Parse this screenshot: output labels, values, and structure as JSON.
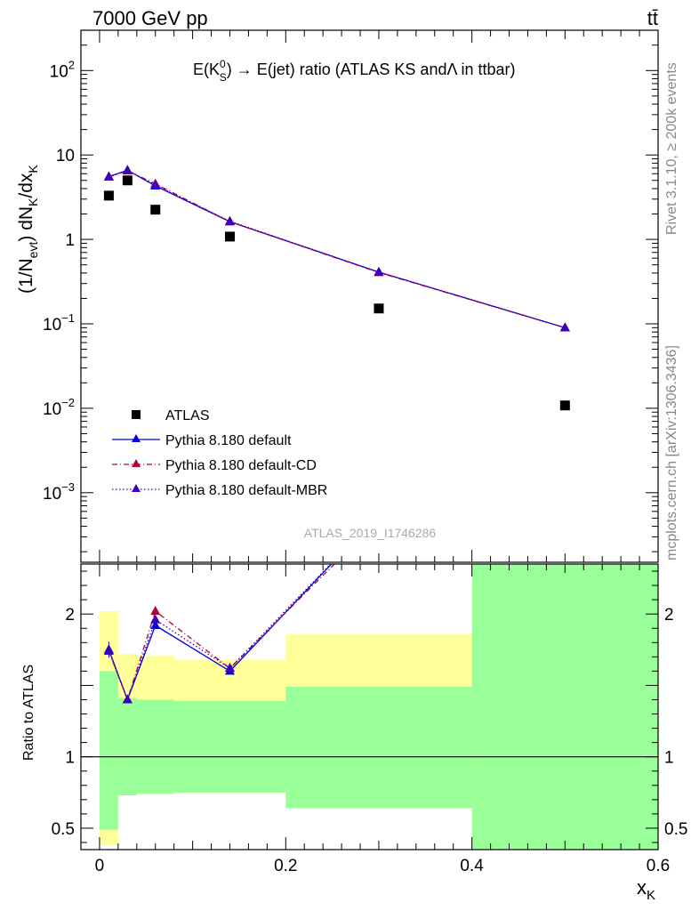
{
  "header": {
    "left": "7000 GeV pp",
    "right": "tt̄"
  },
  "side_labels": {
    "rivet": "Rivet 3.1.10, ≥ 200k events",
    "mcplots": "mcplots.cern.ch [arXiv:1306.3436]"
  },
  "watermark": "ATLAS_2019_I1746286",
  "colors": {
    "atlas": "#000000",
    "default": "#0000dd",
    "cd": "#b0003a",
    "mbr": "#3a00c0",
    "band_yellow": "#ffff99",
    "band_green": "#99ff99"
  },
  "chart_data": [
    {
      "type": "scatter",
      "title_parts": {
        "e": "E(K",
        "sup": "0",
        "sub": "S",
        "rest": ") → E(jet) ratio (ATLAS KS and",
        "lambda": "Λ",
        "tail": " in ttbar)"
      },
      "ylabel_parts": {
        "a": "(1/N",
        "a_sub": "evt",
        "b": ") dN",
        "b_sub": "K",
        "c": "/dx",
        "c_sub": "K"
      },
      "yscale": "log",
      "ylim": [
        0.00015,
        300
      ],
      "xlim": [
        -0.02,
        0.6
      ],
      "yticks": [
        {
          "v": 100,
          "base": "10",
          "exp": "2"
        },
        {
          "v": 10,
          "base": "10",
          "exp": ""
        },
        {
          "v": 1,
          "base": "1",
          "exp": ""
        },
        {
          "v": 0.1,
          "base": "10",
          "exp": "−1"
        },
        {
          "v": 0.01,
          "base": "10",
          "exp": "−2"
        },
        {
          "v": 0.001,
          "base": "10",
          "exp": "−3"
        }
      ],
      "series": [
        {
          "name": "ATLAS",
          "style": "data",
          "x": [
            0.01,
            0.03,
            0.06,
            0.14,
            0.3,
            0.5
          ],
          "y": [
            3.3,
            5.0,
            2.25,
            1.08,
            0.152,
            0.0108
          ]
        },
        {
          "name": "Pythia 8.180 default",
          "style": "solid",
          "x": [
            0.01,
            0.03,
            0.06,
            0.14,
            0.3,
            0.5
          ],
          "y": [
            5.55,
            6.6,
            4.3,
            1.62,
            0.41,
            0.09
          ]
        },
        {
          "name": "Pythia 8.180 default-CD",
          "style": "dashdot",
          "x": [
            0.01,
            0.03,
            0.06,
            0.14,
            0.3,
            0.5
          ],
          "y": [
            5.5,
            6.5,
            4.55,
            1.62,
            0.405,
            0.09
          ]
        },
        {
          "name": "Pythia 8.180 default-MBR",
          "style": "dotted",
          "x": [
            0.01,
            0.03,
            0.06,
            0.14,
            0.3,
            0.5
          ],
          "y": [
            5.5,
            6.6,
            4.4,
            1.64,
            0.41,
            0.09
          ]
        }
      ],
      "legend_position": "lower-left"
    },
    {
      "type": "line",
      "ylabel": "Ratio to ATLAS",
      "xlabel": "x",
      "xlabel_sub": "K",
      "ylim": [
        0.35,
        2.35
      ],
      "xlim": [
        -0.02,
        0.6
      ],
      "yticks": [
        {
          "v": 0.5,
          "label": "0.5"
        },
        {
          "v": 1,
          "label": "1"
        },
        {
          "v": 2,
          "label": "2"
        }
      ],
      "xticks": [
        {
          "v": 0,
          "label": "0"
        },
        {
          "v": 0.2,
          "label": "0.2"
        },
        {
          "v": 0.4,
          "label": "0.4"
        },
        {
          "v": 0.6,
          "label": "0.6"
        }
      ],
      "bins": [
        {
          "x0": 0.0,
          "x1": 0.02,
          "yellow": [
            0.38,
            2.02
          ],
          "green": [
            0.49,
            1.6
          ]
        },
        {
          "x0": 0.02,
          "x1": 0.04,
          "yellow": [
            0.73,
            1.72
          ],
          "green": [
            0.73,
            1.41
          ]
        },
        {
          "x0": 0.04,
          "x1": 0.08,
          "yellow": [
            0.74,
            1.71
          ],
          "green": [
            0.74,
            1.4
          ]
        },
        {
          "x0": 0.08,
          "x1": 0.2,
          "yellow": [
            0.75,
            1.68
          ],
          "green": [
            0.75,
            1.39
          ]
        },
        {
          "x0": 0.2,
          "x1": 0.4,
          "yellow": [
            0.64,
            1.86
          ],
          "green": [
            0.64,
            1.49
          ]
        },
        {
          "x0": 0.4,
          "x1": 0.6,
          "yellow": [
            0.35,
            2.35
          ],
          "green": [
            0.35,
            2.35
          ]
        }
      ],
      "series": [
        {
          "name": "Pythia 8.180 default",
          "x": [
            0.01,
            0.03,
            0.06,
            0.14,
            0.3
          ],
          "y": [
            1.75,
            1.4,
            1.92,
            1.6,
            2.7
          ]
        },
        {
          "name": "Pythia 8.180 default-CD",
          "x": [
            0.01,
            0.03,
            0.06,
            0.14,
            0.3
          ],
          "y": [
            1.74,
            1.4,
            2.02,
            1.62,
            2.66
          ]
        },
        {
          "name": "Pythia 8.180 default-MBR",
          "x": [
            0.01,
            0.03,
            0.06,
            0.14,
            0.3
          ],
          "y": [
            1.74,
            1.4,
            1.96,
            1.62,
            2.7
          ]
        }
      ]
    }
  ]
}
